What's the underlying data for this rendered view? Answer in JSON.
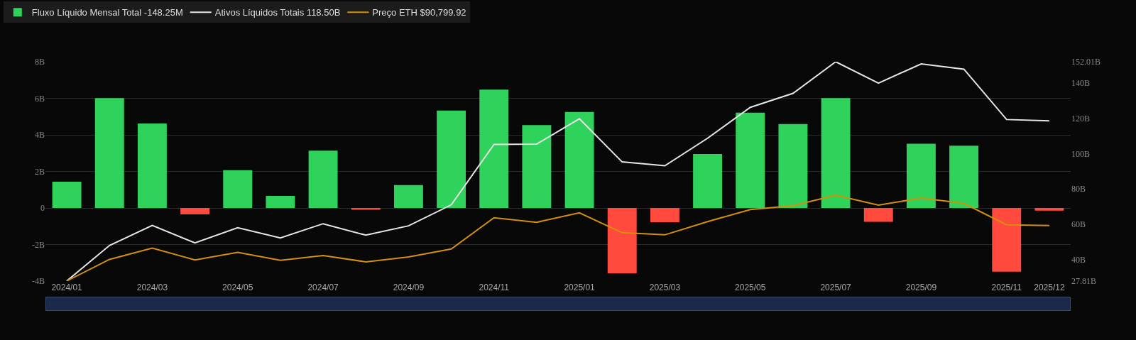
{
  "chart_data": {
    "type": "bar",
    "categories": [
      "2024/01",
      null,
      "2024/03",
      null,
      "2024/05",
      null,
      "2024/07",
      null,
      "2024/09",
      null,
      "2024/11",
      null,
      "2025/01",
      null,
      "2025/03",
      null,
      "2025/05",
      null,
      "2025/07",
      null,
      "2025/09",
      null,
      "2025/11",
      "2025/12"
    ],
    "series": [
      {
        "name": "Fluxo Líquido Mensal Total -148.25M",
        "colors": [
          "#2fd25a",
          "#2fd25a",
          "#2fd25a",
          "#ff4a3d",
          "#2fd25a",
          "#2fd25a",
          "#2fd25a",
          "#ff4a3d",
          "#2fd25a",
          "#2fd25a",
          "#2fd25a",
          "#2fd25a",
          "#2fd25a",
          "#ff4a3d",
          "#ff4a3d",
          "#2fd25a",
          "#2fd25a",
          "#2fd25a",
          "#2fd25a",
          "#ff4a3d",
          "#2fd25a",
          "#2fd25a",
          "#ff4a3d",
          "#ff4a3d"
        ],
        "values": [
          1.44,
          6.01,
          4.62,
          -0.35,
          2.07,
          0.66,
          3.14,
          -0.1,
          1.25,
          5.33,
          6.48,
          4.53,
          5.25,
          -3.57,
          -0.78,
          2.95,
          5.21,
          4.59,
          6.01,
          -0.76,
          3.51,
          3.41,
          -3.49,
          -0.15
        ]
      },
      {
        "name": "Ativos Líquidos Totais 118.50B",
        "type": "line",
        "axis": "y2",
        "color": "#e6e6e6",
        "values": [
          27.9,
          48.0,
          59.3,
          49.4,
          58.0,
          52.2,
          60.3,
          53.8,
          59.1,
          71.0,
          105.2,
          105.4,
          119.7,
          95.3,
          93.1,
          108.7,
          126.2,
          134.1,
          152.0,
          139.9,
          150.8,
          147.8,
          119.3,
          118.5
        ]
      },
      {
        "name": "Preço ETH $90,799.92",
        "type": "line",
        "axis": "y2",
        "color": "#d4900c",
        "values": [
          27.9,
          40.1,
          46.5,
          39.8,
          44.1,
          39.6,
          42.3,
          38.7,
          41.5,
          46.0,
          63.7,
          61.1,
          66.5,
          55.2,
          54.0,
          61.5,
          68.3,
          70.5,
          76.4,
          70.8,
          74.8,
          71.8,
          59.7,
          59.3
        ]
      }
    ],
    "ylim": [
      -4,
      8
    ],
    "yticks": [
      {
        "value": -4,
        "label": "-4B"
      },
      {
        "value": -2,
        "label": "-2B"
      },
      0,
      {
        "value": 2,
        "label": "2B"
      },
      {
        "value": 4,
        "label": "4B"
      },
      {
        "value": 6,
        "label": "6B"
      },
      {
        "value": 8,
        "label": "8B"
      }
    ],
    "y2lim": [
      27.81,
      152.01
    ],
    "y2ticks": [
      {
        "value": 27.81,
        "label": "27.81B"
      },
      {
        "value": 40,
        "label": "40B"
      },
      {
        "value": 60,
        "label": "60B"
      },
      {
        "value": 80,
        "label": "80B"
      },
      {
        "value": 100,
        "label": "100B"
      },
      {
        "value": 120,
        "label": "120B"
      },
      {
        "value": 140,
        "label": "140B"
      },
      {
        "value": 152.01,
        "label": "152.01B"
      }
    ],
    "grid": "y",
    "legend": "top left",
    "marker": "none",
    "line_style": "solid"
  }
}
